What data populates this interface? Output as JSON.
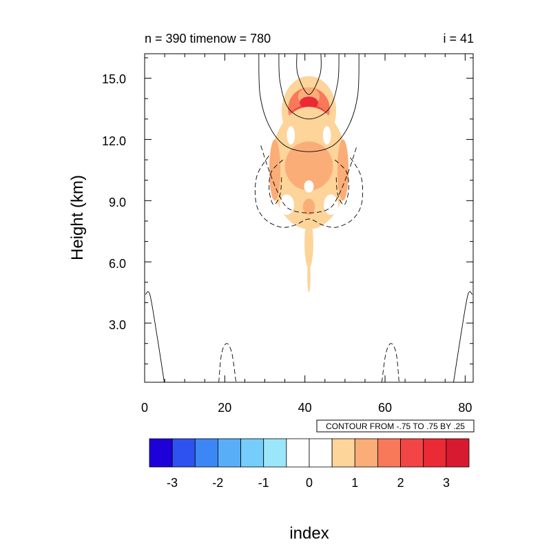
{
  "chart_data": {
    "type": "heatmap",
    "title_left": "n = 390 timenow = 780",
    "title_right": "i = 41",
    "xlabel": "",
    "ylabel": "Height (km)",
    "xlim": [
      0,
      82
    ],
    "ylim": [
      0.1,
      16.2
    ],
    "x_ticks": [
      "0",
      "20",
      "40",
      "60",
      "80"
    ],
    "y_ticks": [
      "3.0",
      "6.0",
      "9.0",
      "12.0",
      "15.0"
    ],
    "contour_info": "CONTOUR FROM -.75 TO .75 BY .25",
    "colorbar": {
      "label": "index",
      "tick_labels": [
        "-3",
        "-2",
        "-1",
        "0",
        "1",
        "2",
        "3"
      ],
      "colors": [
        "#1e00d8",
        "#2d52f0",
        "#3d86f5",
        "#58aff8",
        "#74cdfa",
        "#9ce6fc",
        "#ffffff",
        "#ffffff",
        "#fdd49a",
        "#fbad78",
        "#f8785a",
        "#f34545",
        "#ea2a34",
        "#d81a31"
      ]
    },
    "shaded_blobs": [
      {
        "cx": 41,
        "cy": 13.4,
        "rx": 6.8,
        "ry": 1.7,
        "level": 1
      },
      {
        "cx": 41,
        "cy": 13.5,
        "rx": 5.2,
        "ry": 1.05,
        "level": 3
      },
      {
        "cx": 41,
        "cy": 13.1,
        "rx": 4.6,
        "ry": 0.6,
        "level": 4
      },
      {
        "cx": 41,
        "cy": 14.1,
        "rx": 2.7,
        "ry": 0.45,
        "level": 2
      },
      {
        "cx": 41,
        "cy": 13.8,
        "rx": 2.3,
        "ry": 0.3,
        "level": 5
      },
      {
        "cx": 41,
        "cy": 10.6,
        "rx": 9.6,
        "ry": 3.0,
        "level": 1
      },
      {
        "cx": 41,
        "cy": 10.7,
        "rx": 6.0,
        "ry": 1.2,
        "level": 2
      },
      {
        "cx": 32.5,
        "cy": 10.5,
        "rx": 1.4,
        "ry": 1.5,
        "level": 2
      },
      {
        "cx": 49.5,
        "cy": 10.5,
        "rx": 1.4,
        "ry": 1.5,
        "level": 2
      },
      {
        "cx": 41,
        "cy": 8.7,
        "rx": 1.5,
        "ry": 0.4,
        "level": 2
      },
      {
        "cx": 41,
        "cy": 6.9,
        "rx": 1.1,
        "ry": 1.2,
        "level": 1
      },
      {
        "cx": 41,
        "cy": 5.3,
        "rx": 0.4,
        "ry": 0.8,
        "level": 1
      }
    ],
    "white_gaps": [
      {
        "cx": 36.5,
        "cy": 12.2,
        "rx": 1.0,
        "ry": 0.45
      },
      {
        "cx": 45.5,
        "cy": 12.2,
        "rx": 1.0,
        "ry": 0.45
      },
      {
        "cx": 35.5,
        "cy": 8.8,
        "rx": 1.8,
        "ry": 0.5
      },
      {
        "cx": 46.5,
        "cy": 8.8,
        "rx": 1.8,
        "ry": 0.5
      },
      {
        "cx": 41,
        "cy": 9.7,
        "rx": 1.2,
        "ry": 0.3
      },
      {
        "cx": 30.3,
        "cy": 11.0,
        "rx": 0.6,
        "ry": 0.8
      },
      {
        "cx": 51.7,
        "cy": 11.0,
        "rx": 0.6,
        "ry": 0.8
      }
    ],
    "solid_contours": [
      [
        [
          28.5,
          16.2
        ],
        [
          28.8,
          14.2
        ],
        [
          31,
          12.7
        ],
        [
          35,
          11.7
        ],
        [
          41,
          11.4
        ],
        [
          47,
          11.7
        ],
        [
          51,
          12.7
        ],
        [
          53.2,
          14.2
        ],
        [
          53.5,
          16.2
        ]
      ],
      [
        [
          33.5,
          16.2
        ],
        [
          33.8,
          14.8
        ],
        [
          36,
          13.5
        ],
        [
          41,
          13.0
        ],
        [
          46,
          13.5
        ],
        [
          48.2,
          14.8
        ],
        [
          48.5,
          16.2
        ]
      ],
      [
        [
          38,
          16.2
        ],
        [
          38.2,
          15.2
        ],
        [
          41,
          14.2
        ],
        [
          43.8,
          15.2
        ],
        [
          44,
          16.2
        ]
      ],
      [
        [
          0.2,
          4.4
        ],
        [
          1.3,
          4.4
        ],
        [
          3,
          2.5
        ],
        [
          4.9,
          0.1
        ]
      ],
      [
        [
          81.8,
          4.4
        ],
        [
          80.7,
          4.4
        ],
        [
          79,
          2.5
        ],
        [
          77.1,
          0.1
        ]
      ]
    ],
    "dashed_contours": [
      [
        [
          29,
          11.7
        ],
        [
          31,
          10.5
        ],
        [
          33.5,
          9.3
        ],
        [
          36,
          8.6
        ],
        [
          41,
          8.4
        ],
        [
          46,
          8.6
        ],
        [
          48.5,
          9.3
        ],
        [
          51,
          10.5
        ],
        [
          53,
          11.7
        ]
      ],
      [
        [
          31,
          11.2
        ],
        [
          28,
          10.2
        ],
        [
          27.8,
          8.9
        ],
        [
          30,
          8.1
        ],
        [
          34,
          7.7
        ],
        [
          37.5,
          7.8
        ],
        [
          41,
          8.1
        ],
        [
          44.5,
          7.8
        ],
        [
          48,
          7.7
        ],
        [
          52,
          8.1
        ],
        [
          54.2,
          8.9
        ],
        [
          54,
          10.2
        ],
        [
          51,
          11.2
        ]
      ],
      [
        [
          34.5,
          11.0
        ],
        [
          31.6,
          10.4
        ],
        [
          31.1,
          9.5
        ],
        [
          32.2,
          8.8
        ],
        [
          33.8,
          9.3
        ],
        [
          34.2,
          10.2
        ]
      ],
      [
        [
          47.5,
          11.0
        ],
        [
          50.4,
          10.4
        ],
        [
          50.9,
          9.5
        ],
        [
          49.8,
          8.8
        ],
        [
          48.2,
          9.3
        ],
        [
          47.8,
          10.2
        ]
      ],
      [
        [
          18.5,
          0.1
        ],
        [
          19.2,
          1.5
        ],
        [
          20.5,
          2.0
        ],
        [
          21.8,
          1.5
        ],
        [
          22.8,
          0.1
        ]
      ],
      [
        [
          59.2,
          0.1
        ],
        [
          60.2,
          1.5
        ],
        [
          61.5,
          2.0
        ],
        [
          62.8,
          1.5
        ],
        [
          63.5,
          0.1
        ]
      ]
    ]
  }
}
